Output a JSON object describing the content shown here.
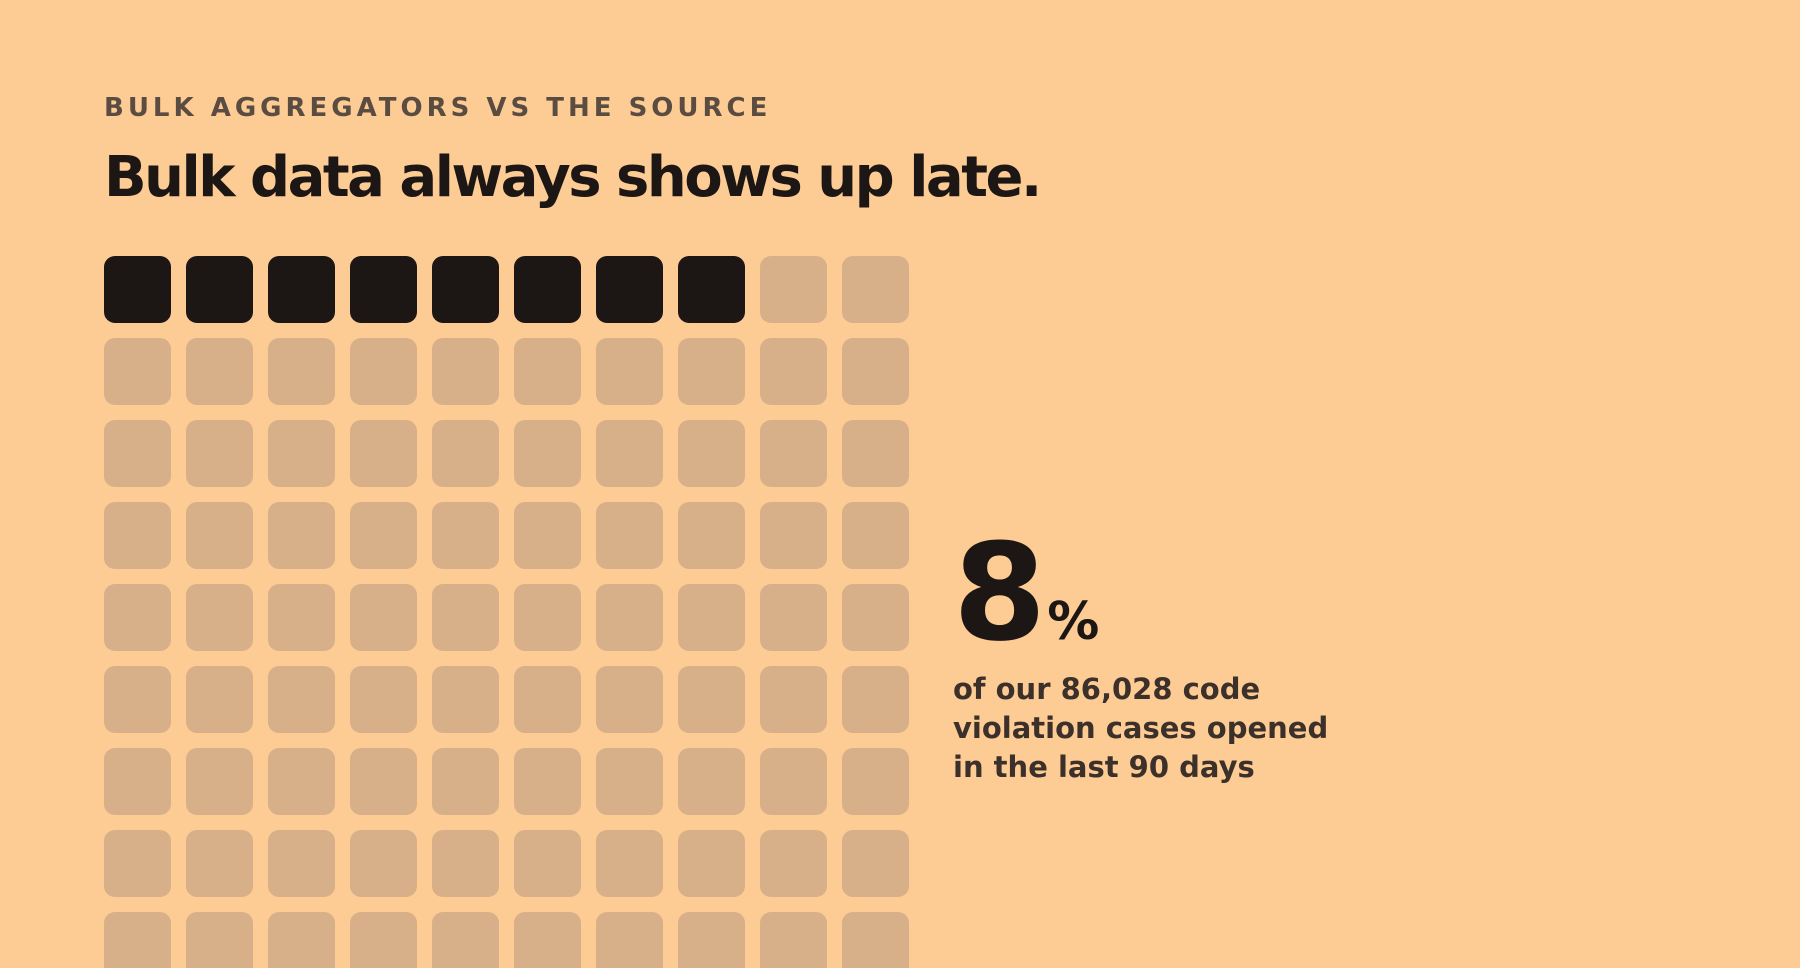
{
  "header": {
    "eyebrow": "BULK AGGREGATORS VS THE SOURCE",
    "headline": "Bulk data always shows up late."
  },
  "stat": {
    "value": "8",
    "unit": "%",
    "caption": "of our 86,028 code violation cases opened in the last 90 days"
  },
  "colors": {
    "background": "#FDCB94",
    "filled_cell": "#1C1614",
    "empty_cell": "#D7B089",
    "text_dark": "#1C1614",
    "text_muted": "#5A4C40"
  },
  "chart_data": {
    "type": "waffle",
    "columns": 10,
    "total_cells": 100,
    "filled_cells": 8,
    "filled_percent": 8,
    "visible_rows": 9,
    "cropped_at_bottom": true,
    "total_cases": 86028,
    "period": "last 90 days"
  }
}
